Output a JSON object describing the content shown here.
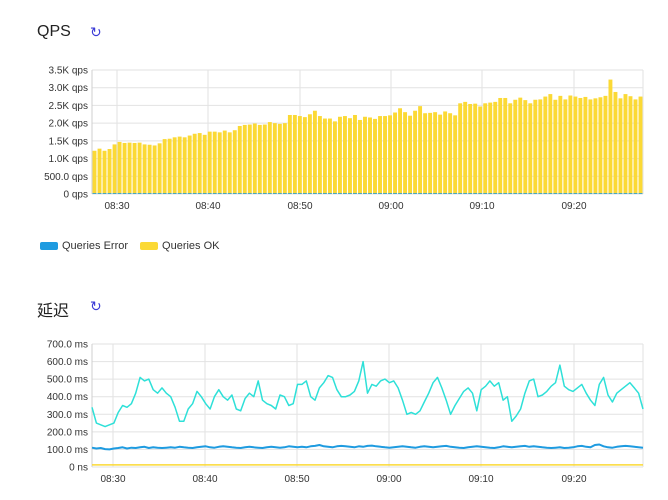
{
  "panels": {
    "qps": {
      "title": "QPS",
      "refresh_icon": "refresh-icon"
    },
    "latency": {
      "title": "延迟",
      "refresh_icon": "refresh-icon"
    }
  },
  "legend": [
    {
      "label": "Queries Error",
      "color": "#1e9be0"
    },
    {
      "label": "Queries OK",
      "color": "#fbd935"
    }
  ],
  "colors": {
    "error": "#1e9be0",
    "ok": "#fbd935",
    "p99": "#2ee0d8",
    "p50": "#1e9be0",
    "p10": "#fbd935"
  },
  "chart_data": [
    {
      "type": "bar",
      "stacked": true,
      "title": "QPS",
      "yticks": [
        "0 qps",
        "500.0 qps",
        "1.0K qps",
        "1.5K qps",
        "2.0K qps",
        "2.5K qps",
        "3.0K qps",
        "3.5K qps"
      ],
      "ylim": [
        0,
        3500
      ],
      "xticks": [
        "08:30",
        "08:40",
        "08:50",
        "09:00",
        "09:10",
        "09:20"
      ],
      "grid": true,
      "series": [
        {
          "name": "Queries OK",
          "values": [
            1220,
            1280,
            1220,
            1270,
            1400,
            1470,
            1440,
            1450,
            1440,
            1450,
            1400,
            1390,
            1370,
            1430,
            1550,
            1560,
            1600,
            1620,
            1600,
            1650,
            1700,
            1720,
            1670,
            1760,
            1760,
            1740,
            1790,
            1740,
            1800,
            1920,
            1950,
            1960,
            1990,
            1950,
            1960,
            2030,
            2000,
            1980,
            2000,
            2230,
            2230,
            2200,
            2170,
            2250,
            2350,
            2200,
            2130,
            2130,
            2050,
            2180,
            2200,
            2140,
            2230,
            2090,
            2180,
            2160,
            2120,
            2200,
            2200,
            2220,
            2300,
            2420,
            2310,
            2210,
            2350,
            2480,
            2280,
            2290,
            2310,
            2240,
            2330,
            2280,
            2220,
            2560,
            2600,
            2540,
            2550,
            2470,
            2560,
            2580,
            2600,
            2710,
            2710,
            2560,
            2660,
            2720,
            2650,
            2560,
            2660,
            2670,
            2750,
            2820,
            2660,
            2770,
            2670,
            2780,
            2750,
            2710,
            2740,
            2670,
            2700,
            2730,
            2770,
            3230,
            2880,
            2700,
            2820,
            2760,
            2670,
            2750
          ]
        },
        {
          "name": "Queries Error",
          "values": [
            0,
            0,
            0,
            0,
            0,
            0,
            0,
            0,
            0,
            0,
            0,
            0,
            0,
            0,
            0,
            0,
            0,
            0,
            0,
            0,
            0,
            0,
            0,
            0,
            0,
            0,
            0,
            0,
            0,
            0,
            0,
            0,
            0,
            0,
            0,
            0,
            0,
            0,
            0,
            0,
            0,
            0,
            0,
            0,
            0,
            0,
            0,
            0,
            0,
            0,
            0,
            0,
            0,
            0,
            0,
            0,
            0,
            0,
            0,
            0,
            0,
            0,
            0,
            0,
            0,
            0,
            0,
            0,
            0,
            0,
            0,
            0,
            0,
            0,
            0,
            0,
            0,
            0,
            0,
            0,
            0,
            0,
            0,
            0,
            0,
            0,
            0,
            0,
            0,
            0,
            0,
            0,
            0,
            0,
            0,
            0,
            0,
            0,
            0,
            0,
            0,
            0,
            0,
            0,
            0,
            0,
            0,
            0,
            0,
            0
          ]
        }
      ],
      "legend_position": "bottom-left"
    },
    {
      "type": "line",
      "title": "延迟",
      "yticks": [
        "0 ns",
        "100.0 ms",
        "200.0 ms",
        "300.0 ms",
        "400.0 ms",
        "500.0 ms",
        "600.0 ms",
        "700.0 ms"
      ],
      "ylim": [
        0,
        700
      ],
      "xticks": [
        "08:30",
        "08:40",
        "08:50",
        "09:00",
        "09:10",
        "09:20"
      ],
      "grid": true,
      "series": [
        {
          "values": [
            340,
            250,
            240,
            230,
            240,
            250,
            310,
            350,
            340,
            360,
            420,
            510,
            490,
            500,
            440,
            420,
            450,
            420,
            400,
            340,
            260,
            260,
            330,
            360,
            430,
            400,
            360,
            330,
            400,
            440,
            400,
            380,
            410,
            330,
            320,
            390,
            420,
            400,
            490,
            380,
            360,
            350,
            330,
            410,
            400,
            350,
            360,
            470,
            470,
            490,
            400,
            380,
            450,
            480,
            520,
            510,
            440,
            400,
            400,
            410,
            430,
            490,
            600,
            420,
            470,
            460,
            490,
            500,
            480,
            490,
            450,
            380,
            300,
            310,
            300,
            320,
            370,
            420,
            480,
            510,
            450,
            380,
            300,
            350,
            390,
            430,
            450,
            420,
            320,
            440,
            460,
            490,
            460,
            480,
            380,
            400,
            260,
            290,
            330,
            420,
            490,
            500,
            400,
            410,
            430,
            460,
            480,
            580,
            460,
            440,
            430,
            450,
            470,
            420,
            380,
            350,
            470,
            510,
            410,
            370,
            420,
            440,
            460,
            480,
            450,
            420,
            330
          ]
        },
        {
          "values": [
            110,
            105,
            108,
            102,
            100,
            105,
            108,
            112,
            105,
            110,
            108,
            112,
            115,
            108,
            112,
            110,
            108,
            110,
            112,
            110,
            115,
            112,
            110,
            108,
            112,
            115,
            118,
            112,
            110,
            115,
            118,
            115,
            112,
            110,
            108,
            112,
            115,
            112,
            110,
            108,
            112,
            115,
            112,
            110,
            112,
            118,
            115,
            112,
            115,
            112,
            118,
            120,
            125,
            118,
            115,
            112,
            118,
            120,
            118,
            115,
            112,
            118,
            115,
            120,
            122,
            118,
            115,
            112,
            110,
            112,
            115,
            118,
            115,
            112,
            110,
            115,
            118,
            115,
            112,
            115,
            118,
            120,
            115,
            112,
            110,
            108,
            112,
            115,
            118,
            115,
            112,
            110,
            108,
            112,
            118,
            115,
            112,
            115,
            118,
            120,
            115,
            118,
            115,
            112,
            110,
            108,
            110,
            112,
            108,
            110,
            112,
            118,
            120,
            115,
            112,
            125,
            128,
            118,
            112,
            110,
            115,
            118,
            120,
            118,
            115,
            112,
            110
          ]
        },
        {
          "values": [
            12,
            12,
            12,
            12,
            12,
            12,
            12,
            12,
            12,
            12,
            12,
            12,
            12,
            12,
            12,
            12,
            12,
            12,
            12,
            12,
            12,
            12,
            12,
            12,
            12,
            12,
            12,
            12,
            12,
            12,
            12,
            12,
            12,
            12,
            12,
            12,
            12,
            12,
            12,
            12,
            12,
            12,
            12,
            12,
            12,
            12,
            12,
            12,
            12,
            12,
            12,
            12,
            12,
            12,
            12,
            12,
            12,
            12,
            12,
            12,
            12,
            12,
            12,
            12,
            12,
            12,
            12,
            12,
            12,
            12,
            12,
            12,
            12,
            12,
            12,
            12,
            12,
            12,
            12,
            12,
            12,
            12,
            12,
            12,
            12,
            12,
            12,
            12,
            12,
            12,
            12,
            12,
            12,
            12,
            12,
            12,
            12,
            12,
            12,
            12,
            12,
            12,
            12,
            12,
            12,
            12,
            12,
            12,
            12,
            12,
            12,
            12,
            12,
            12,
            12,
            12,
            12,
            12,
            12,
            12,
            12,
            12,
            12,
            12,
            12,
            12,
            12
          ]
        }
      ]
    }
  ]
}
